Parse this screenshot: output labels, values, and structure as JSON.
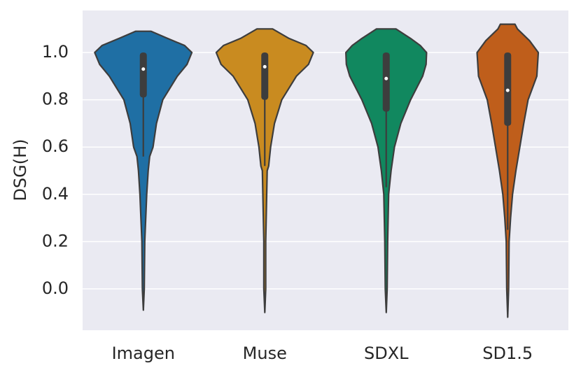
{
  "chart_data": {
    "type": "violin",
    "y_label": "DSG(H)",
    "categories": [
      "Imagen",
      "Muse",
      "SDXL",
      "SD1.5"
    ],
    "ylim": [
      -0.175,
      1.178
    ],
    "yticks": [
      {
        "value": 0,
        "label": "0.0"
      },
      0.2,
      0.4,
      0.6,
      0.8,
      {
        "value": 1,
        "label": "1.0"
      }
    ],
    "grid": true,
    "background": "#eaeaf2",
    "violins": [
      {
        "color": "#1f6fa4",
        "median": 0.93,
        "q1": 0.81,
        "q3": 1.0,
        "whisker_low": 0.56,
        "whisker_high": 1.0,
        "kde_y": [
          -0.09,
          0.0,
          0.2,
          0.3,
          0.4,
          0.5,
          0.56,
          0.6,
          0.7,
          0.8,
          0.9,
          0.95,
          1.0,
          1.03,
          1.06,
          1.09
        ],
        "kde_width": [
          0.0,
          0.02,
          0.03,
          0.05,
          0.07,
          0.1,
          0.13,
          0.2,
          0.27,
          0.4,
          0.7,
          0.9,
          1.0,
          0.85,
          0.5,
          0.16
        ]
      },
      {
        "color": "#c98b20",
        "median": 0.94,
        "q1": 0.8,
        "q3": 1.0,
        "whisker_low": 0.52,
        "whisker_high": 1.0,
        "kde_y": [
          -0.1,
          0.0,
          0.2,
          0.4,
          0.5,
          0.52,
          0.6,
          0.7,
          0.8,
          0.9,
          0.95,
          1.0,
          1.03,
          1.06,
          1.1
        ],
        "kde_width": [
          0.0,
          0.02,
          0.02,
          0.04,
          0.05,
          0.08,
          0.12,
          0.2,
          0.35,
          0.65,
          0.9,
          1.0,
          0.85,
          0.5,
          0.16
        ]
      },
      {
        "color": "#11885f",
        "median": 0.89,
        "q1": 0.75,
        "q3": 1.0,
        "whisker_low": 0.43,
        "whisker_high": 1.0,
        "kde_y": [
          -0.1,
          0.0,
          0.2,
          0.4,
          0.5,
          0.6,
          0.7,
          0.8,
          0.9,
          0.95,
          1.0,
          1.03,
          1.06,
          1.1
        ],
        "kde_width": [
          0.0,
          0.02,
          0.03,
          0.05,
          0.1,
          0.17,
          0.3,
          0.5,
          0.75,
          0.82,
          0.83,
          0.7,
          0.5,
          0.2
        ]
      },
      {
        "color": "#bf5e1b",
        "median": 0.84,
        "q1": 0.69,
        "q3": 1.0,
        "whisker_low": 0.25,
        "whisker_high": 1.0,
        "kde_y": [
          -0.12,
          0.0,
          0.2,
          0.3,
          0.4,
          0.5,
          0.6,
          0.7,
          0.8,
          0.9,
          1.0,
          1.05,
          1.1,
          1.12
        ],
        "kde_width": [
          0.0,
          0.02,
          0.03,
          0.06,
          0.1,
          0.17,
          0.25,
          0.33,
          0.42,
          0.6,
          0.63,
          0.45,
          0.2,
          0.15
        ]
      }
    ]
  }
}
